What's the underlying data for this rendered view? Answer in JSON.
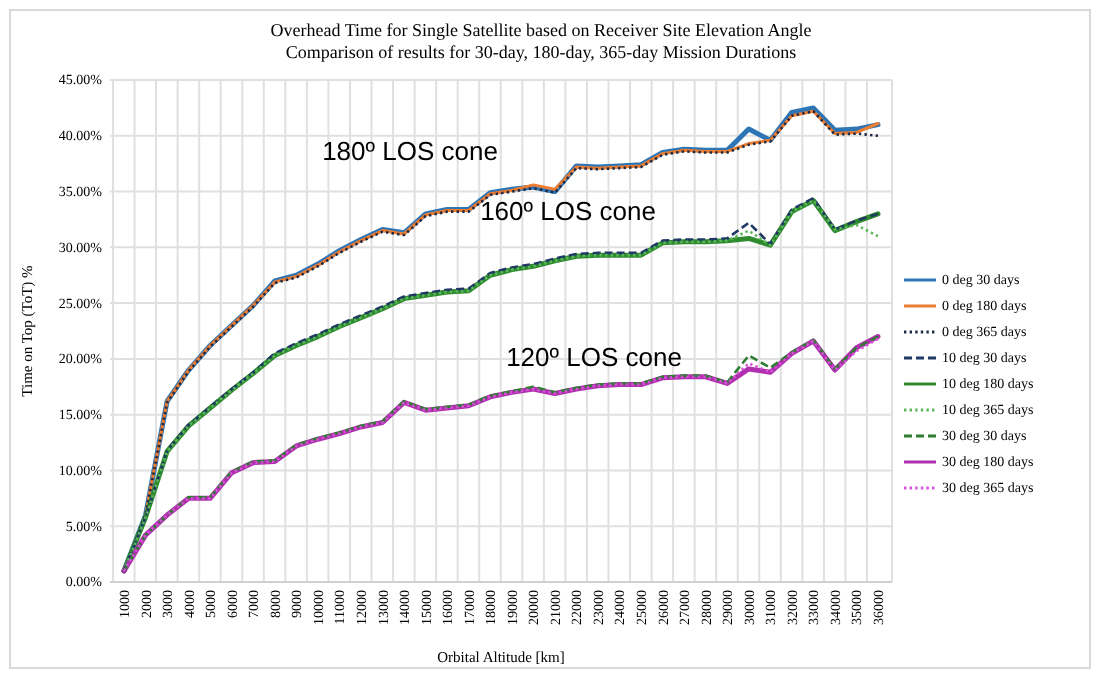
{
  "chart_data": {
    "type": "line",
    "title": "Overhead Time for Single Satellite based on Receiver Site Elevation Angle",
    "subtitle": "Comparison of results for 30-day, 180-day, 365-day Mission Durations",
    "xlabel": "Orbital Altitude [km]",
    "ylabel": "Time on Top (ToT) %",
    "categories": [
      "1000",
      "2000",
      "3000",
      "4000",
      "5000",
      "6000",
      "7000",
      "8000",
      "9000",
      "10000",
      "11000",
      "12000",
      "13000",
      "14000",
      "15000",
      "16000",
      "17000",
      "18000",
      "19000",
      "20000",
      "21000",
      "22000",
      "23000",
      "24000",
      "25000",
      "26000",
      "27000",
      "28000",
      "29000",
      "30000",
      "31000",
      "32000",
      "33000",
      "34000",
      "35000",
      "36000"
    ],
    "ylim": [
      0,
      45
    ],
    "yticks": [
      {
        "value": 0,
        "label": "0.00%"
      },
      {
        "value": 5,
        "label": "5.00%"
      },
      {
        "value": 10,
        "label": "10.00%"
      },
      {
        "value": 15,
        "label": "15.00%"
      },
      {
        "value": 20,
        "label": "20.00%"
      },
      {
        "value": 25,
        "label": "25.00%"
      },
      {
        "value": 30,
        "label": "30.00%"
      },
      {
        "value": 35,
        "label": "35.00%"
      },
      {
        "value": 40,
        "label": "40.00%"
      },
      {
        "value": 45,
        "label": "45.00%"
      }
    ],
    "grid": true,
    "legend": "right",
    "marker": "none",
    "series": [
      {
        "name": "0 deg 30 days",
        "color": "#2e75b6",
        "line_style": "solid",
        "values": [
          1,
          6,
          16.2,
          19,
          21.2,
          23,
          24.8,
          27,
          27.5,
          28.5,
          29.7,
          30.7,
          31.6,
          31.3,
          33,
          33.4,
          33.4,
          34.9,
          35.2,
          35.4,
          35,
          37.3,
          37.2,
          37.3,
          37.4,
          38.5,
          38.8,
          38.7,
          38.7,
          40.6,
          39.6,
          42.1,
          42.5,
          40.5,
          40.6,
          41
        ]
      },
      {
        "name": "0 deg 180 days",
        "color": "#ed7d31",
        "line_style": "solid",
        "values": [
          1,
          6,
          16.2,
          19,
          21.2,
          23,
          24.8,
          26.9,
          27.4,
          28.4,
          29.6,
          30.6,
          31.5,
          31.2,
          32.9,
          33.3,
          33.3,
          34.8,
          35.1,
          35.6,
          35.2,
          37.2,
          37.1,
          37.2,
          37.3,
          38.4,
          38.7,
          38.6,
          38.6,
          39.3,
          39.6,
          41.8,
          42.2,
          40.2,
          40.3,
          41.1
        ]
      },
      {
        "name": "0 deg 365 days",
        "color": "#1f2a44",
        "line_style": "dotted",
        "values": [
          1,
          6,
          16.1,
          18.9,
          21.1,
          22.9,
          24.7,
          26.8,
          27.3,
          28.3,
          29.5,
          30.5,
          31.4,
          31.1,
          32.8,
          33.2,
          33.2,
          34.7,
          35,
          35.3,
          34.9,
          37.1,
          37,
          37.1,
          37.2,
          38.3,
          38.6,
          38.5,
          38.5,
          39.2,
          39.5,
          41.8,
          42.2,
          40.1,
          40.2,
          40
        ]
      },
      {
        "name": "10 deg 30 days",
        "color": "#203864",
        "line_style": "dashed",
        "values": [
          1,
          5.8,
          11.8,
          14.1,
          15.7,
          17.3,
          18.8,
          20.5,
          21.4,
          22.2,
          23.1,
          23.9,
          24.7,
          25.6,
          25.9,
          26.2,
          26.3,
          27.7,
          28.2,
          28.5,
          29,
          29.4,
          29.5,
          29.5,
          29.5,
          30.6,
          30.7,
          30.7,
          30.8,
          32.2,
          30.3,
          33.4,
          34.4,
          31.6,
          32.4,
          33
        ]
      },
      {
        "name": "10 deg 180 days",
        "color": "#2e8b2e",
        "line_style": "solid",
        "values": [
          1,
          5.8,
          11.7,
          14,
          15.6,
          17.2,
          18.7,
          20.3,
          21.2,
          22,
          22.9,
          23.7,
          24.5,
          25.4,
          25.7,
          26,
          26.1,
          27.5,
          28,
          28.3,
          28.8,
          29.2,
          29.3,
          29.3,
          29.3,
          30.4,
          30.5,
          30.5,
          30.6,
          30.8,
          30.2,
          33.2,
          34.2,
          31.5,
          32.3,
          33
        ]
      },
      {
        "name": "10 deg 365 days",
        "color": "#5cb85c",
        "line_style": "dotted",
        "values": [
          1,
          5.8,
          11.7,
          14,
          15.6,
          17.2,
          18.7,
          20.3,
          21.2,
          22,
          22.9,
          23.7,
          24.5,
          25.4,
          25.7,
          26,
          26.1,
          27.5,
          28,
          28.3,
          28.8,
          29.2,
          29.3,
          29.3,
          29.3,
          30.4,
          30.5,
          30.5,
          30.6,
          31.5,
          30.2,
          33.2,
          34.2,
          31.6,
          32,
          31
        ]
      },
      {
        "name": "30 deg 30 days",
        "color": "#2e7d32",
        "line_style": "dashed",
        "values": [
          1,
          4.2,
          6,
          7.6,
          7.6,
          9.9,
          10.8,
          10.9,
          12.3,
          12.9,
          13.4,
          14,
          14.4,
          16.2,
          15.5,
          15.7,
          15.9,
          16.7,
          17.1,
          17.5,
          17,
          17.4,
          17.7,
          17.8,
          17.8,
          18.4,
          18.5,
          18.5,
          17.9,
          20.3,
          19.2,
          20.6,
          21.7,
          19.1,
          21,
          22
        ]
      },
      {
        "name": "30 deg 180 days",
        "color": "#b030b0",
        "line_style": "solid",
        "values": [
          1,
          4.2,
          6,
          7.5,
          7.5,
          9.8,
          10.7,
          10.8,
          12.2,
          12.8,
          13.3,
          13.9,
          14.3,
          16.1,
          15.4,
          15.6,
          15.8,
          16.6,
          17,
          17.3,
          16.9,
          17.3,
          17.6,
          17.7,
          17.7,
          18.3,
          18.4,
          18.4,
          17.8,
          19.1,
          18.8,
          20.5,
          21.6,
          19,
          21,
          22
        ]
      },
      {
        "name": "30 deg 365 days",
        "color": "#d84fd8",
        "line_style": "dotted",
        "values": [
          1,
          4.2,
          6,
          7.5,
          7.5,
          9.8,
          10.7,
          10.8,
          12.2,
          12.8,
          13.3,
          13.9,
          14.3,
          16.1,
          15.4,
          15.6,
          15.8,
          16.6,
          17,
          17.3,
          16.9,
          17.3,
          17.6,
          17.7,
          17.7,
          18.3,
          18.4,
          18.4,
          17.8,
          19.6,
          18.8,
          20.5,
          21.6,
          19,
          20.7,
          21.8
        ]
      }
    ],
    "annotations": [
      "180º LOS cone",
      "160º LOS cone",
      "120º LOS cone"
    ]
  }
}
